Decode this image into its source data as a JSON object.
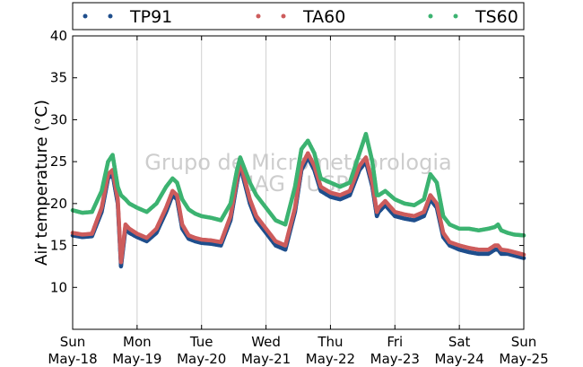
{
  "chart_data": {
    "type": "scatter",
    "ylabel": "Air temperature (°C)",
    "ylim": [
      5,
      40
    ],
    "yticks": [
      10,
      15,
      20,
      25,
      30,
      35,
      40
    ],
    "xlim": [
      0,
      7
    ],
    "xticks": [
      {
        "day": "Sun",
        "date": "May-18"
      },
      {
        "day": "Mon",
        "date": "May-19"
      },
      {
        "day": "Tue",
        "date": "May-20"
      },
      {
        "day": "Wed",
        "date": "May-21"
      },
      {
        "day": "Thu",
        "date": "May-22"
      },
      {
        "day": "Fri",
        "date": "May-23"
      },
      {
        "day": "Sat",
        "date": "May-24"
      },
      {
        "day": "Sun",
        "date": "May-25"
      }
    ],
    "grid": "vertical",
    "legend_position": "top",
    "watermark": [
      "Grupo de Micrometeorologia",
      "IAG / USP"
    ],
    "series": [
      {
        "name": "TP91",
        "color": "#1f4e8c",
        "x": [
          0,
          0.15,
          0.3,
          0.45,
          0.55,
          0.62,
          0.7,
          0.75,
          0.82,
          0.88,
          1.0,
          1.15,
          1.3,
          1.45,
          1.55,
          1.62,
          1.7,
          1.8,
          1.9,
          2.0,
          2.15,
          2.3,
          2.45,
          2.55,
          2.6,
          2.65,
          2.75,
          2.85,
          3.0,
          3.15,
          3.3,
          3.45,
          3.55,
          3.65,
          3.75,
          3.85,
          4.0,
          4.15,
          4.3,
          4.45,
          4.55,
          4.65,
          4.72,
          4.75,
          4.85,
          5.0,
          5.15,
          5.3,
          5.45,
          5.55,
          5.6,
          5.65,
          5.75,
          5.85,
          6.0,
          6.15,
          6.3,
          6.45,
          6.55,
          6.6,
          6.65,
          6.75,
          6.85,
          7.0
        ],
        "y": [
          16.2,
          16.0,
          16.1,
          19.0,
          23.0,
          23.5,
          20.0,
          12.5,
          17.0,
          16.5,
          16.0,
          15.5,
          16.5,
          19.0,
          21.0,
          20.5,
          17.0,
          15.8,
          15.5,
          15.3,
          15.2,
          15.0,
          18.0,
          22.5,
          24.5,
          23.0,
          20.0,
          18.0,
          16.5,
          15.0,
          14.5,
          19.0,
          24.0,
          25.5,
          24.0,
          21.5,
          20.8,
          20.5,
          21.0,
          24.0,
          25.0,
          22.0,
          18.5,
          19.0,
          19.8,
          18.5,
          18.2,
          18.0,
          18.5,
          20.5,
          20.0,
          19.5,
          16.0,
          15.0,
          14.5,
          14.2,
          14.0,
          14.0,
          14.5,
          14.5,
          14.0,
          14.0,
          13.8,
          13.5
        ]
      },
      {
        "name": "TA60",
        "color": "#cd5c5c",
        "x": [
          0,
          0.15,
          0.3,
          0.45,
          0.55,
          0.62,
          0.7,
          0.75,
          0.82,
          0.88,
          1.0,
          1.15,
          1.3,
          1.45,
          1.55,
          1.62,
          1.7,
          1.8,
          1.9,
          2.0,
          2.15,
          2.3,
          2.45,
          2.55,
          2.6,
          2.65,
          2.75,
          2.85,
          3.0,
          3.15,
          3.3,
          3.45,
          3.55,
          3.65,
          3.75,
          3.85,
          4.0,
          4.15,
          4.3,
          4.45,
          4.55,
          4.65,
          4.72,
          4.75,
          4.85,
          5.0,
          5.15,
          5.3,
          5.45,
          5.55,
          5.6,
          5.65,
          5.75,
          5.85,
          6.0,
          6.15,
          6.3,
          6.45,
          6.55,
          6.6,
          6.65,
          6.75,
          6.85,
          7.0
        ],
        "y": [
          16.5,
          16.3,
          16.4,
          19.5,
          23.5,
          24.0,
          20.5,
          13.0,
          17.5,
          17.0,
          16.4,
          15.9,
          17.0,
          19.5,
          21.5,
          21.0,
          17.5,
          16.2,
          15.9,
          15.7,
          15.6,
          15.4,
          18.5,
          23.0,
          25.0,
          23.5,
          20.5,
          18.5,
          17.0,
          15.5,
          15.0,
          19.5,
          24.5,
          26.0,
          24.5,
          22.0,
          21.3,
          21.0,
          21.5,
          24.5,
          25.5,
          22.5,
          19.0,
          19.5,
          20.3,
          19.0,
          18.7,
          18.5,
          19.0,
          21.0,
          20.5,
          20.0,
          16.5,
          15.4,
          15.0,
          14.7,
          14.5,
          14.5,
          15.0,
          15.0,
          14.5,
          14.4,
          14.2,
          13.9
        ]
      },
      {
        "name": "TS60",
        "color": "#3cb371",
        "x": [
          0,
          0.15,
          0.3,
          0.45,
          0.55,
          0.62,
          0.7,
          0.75,
          0.82,
          0.88,
          1.0,
          1.15,
          1.3,
          1.45,
          1.55,
          1.62,
          1.7,
          1.8,
          1.9,
          2.0,
          2.15,
          2.3,
          2.45,
          2.55,
          2.6,
          2.65,
          2.75,
          2.85,
          3.0,
          3.15,
          3.3,
          3.45,
          3.55,
          3.65,
          3.75,
          3.85,
          4.0,
          4.15,
          4.3,
          4.45,
          4.55,
          4.65,
          4.72,
          4.75,
          4.85,
          5.0,
          5.15,
          5.3,
          5.45,
          5.55,
          5.6,
          5.65,
          5.75,
          5.85,
          6.0,
          6.15,
          6.3,
          6.45,
          6.55,
          6.6,
          6.65,
          6.75,
          6.85,
          7.0
        ],
        "y": [
          19.2,
          18.9,
          19.0,
          21.5,
          25.0,
          25.8,
          22.0,
          21.0,
          20.5,
          20.0,
          19.5,
          19.0,
          20.0,
          22.0,
          23.0,
          22.5,
          20.5,
          19.3,
          18.8,
          18.5,
          18.3,
          18.0,
          20.0,
          24.0,
          25.5,
          24.5,
          22.5,
          21.0,
          19.5,
          18.0,
          17.5,
          22.0,
          26.5,
          27.5,
          26.0,
          23.0,
          22.5,
          22.0,
          22.5,
          26.0,
          28.3,
          25.0,
          21.0,
          21.0,
          21.5,
          20.5,
          20.0,
          19.8,
          20.5,
          23.5,
          23.0,
          22.5,
          18.5,
          17.5,
          17.0,
          17.0,
          16.8,
          17.0,
          17.2,
          17.5,
          16.8,
          16.5,
          16.3,
          16.2
        ]
      }
    ]
  }
}
